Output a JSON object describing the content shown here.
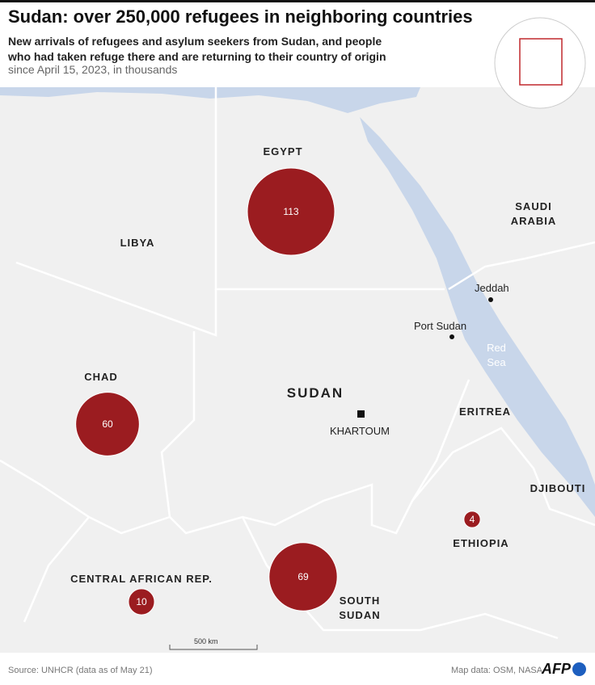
{
  "header": {
    "title": "Sudan: over 250,000 refugees in neighboring countries",
    "subtitle": "New arrivals of refugees and asylum seekers from Sudan, and people who had taken refuge there and are returning to their country of origin",
    "note": "since April 15, 2023, in thousands"
  },
  "countries": [
    "LIBYA",
    "EGYPT",
    "SAUDI ARABIA",
    "CHAD",
    "SUDAN",
    "ERITREA",
    "DJIBOUTI",
    "ETHIOPIA",
    "CENTRAL AFRICAN REP.",
    "SOUTH SUDAN"
  ],
  "cities": [
    "Jeddah",
    "Port Sudan",
    "KHARTOUM"
  ],
  "sea": "Red Sea",
  "refugees": [
    {
      "value": 113
    },
    {
      "value": 60
    },
    {
      "value": 69
    },
    {
      "value": 10
    },
    {
      "value": 4
    }
  ],
  "scale": "500 km",
  "footer": {
    "source": "Source: UNHCR (data as of May 21)",
    "credit": "Map data: OSM, NASA",
    "logo": "AFP"
  }
}
